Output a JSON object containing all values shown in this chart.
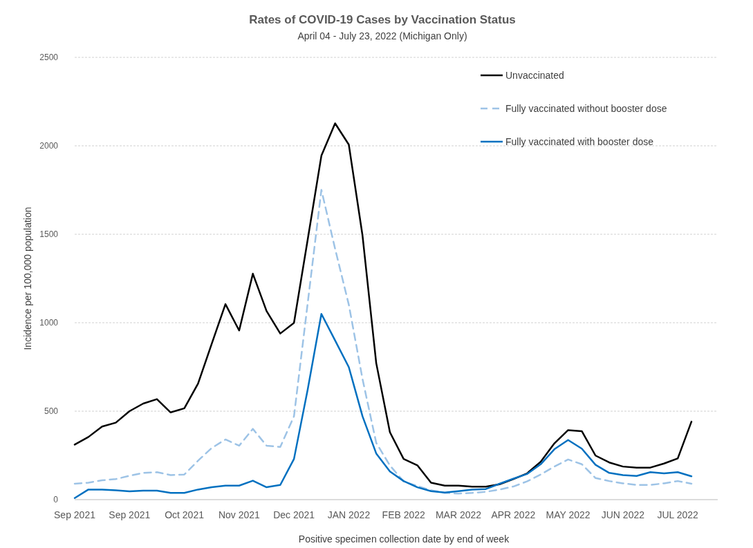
{
  "chart_data": {
    "type": "line",
    "title": "Rates of COVID-19 Cases by Vaccination Status",
    "subtitle": "April 04 - July 23, 2022 (Michigan Only)",
    "xlabel": "Positive specimen collection date by end of week",
    "ylabel": "Incidence per 100,000 population",
    "categories": [
      "Sep 2021",
      null,
      null,
      null,
      "Sep 2021",
      null,
      null,
      null,
      "Oct 2021",
      null,
      null,
      null,
      "Nov 2021",
      null,
      null,
      null,
      "Dec 2021",
      null,
      null,
      null,
      "JAN 2022",
      null,
      null,
      null,
      "FEB 2022",
      null,
      null,
      null,
      "MAR 2022",
      null,
      null,
      null,
      "APR 2022",
      null,
      null,
      null,
      "MAY 2022",
      null,
      null,
      null,
      "JUN 2022",
      null,
      null,
      null,
      "JUL 2022",
      null
    ],
    "series": [
      {
        "name": "Unvaccinated",
        "color": "#000000",
        "line_style": "solid",
        "values": [
          311,
          354,
          413,
          435,
          500,
          543,
          568,
          493,
          516,
          656,
          881,
          1105,
          956,
          1277,
          1066,
          939,
          999,
          1470,
          1944,
          2127,
          2007,
          1493,
          772,
          381,
          230,
          194,
          96,
          79,
          79,
          73,
          73,
          87,
          116,
          148,
          214,
          318,
          393,
          387,
          249,
          210,
          187,
          181,
          181,
          204,
          233,
          441
        ]
      },
      {
        "name": "Fully vaccinated without booster dose",
        "color": "#9dc3e6",
        "line_style": "dashed",
        "values": [
          90,
          96,
          109,
          116,
          135,
          151,
          155,
          139,
          142,
          220,
          292,
          340,
          305,
          400,
          305,
          298,
          471,
          1110,
          1751,
          1418,
          1102,
          682,
          321,
          193,
          103,
          77,
          53,
          38,
          34,
          38,
          44,
          57,
          74,
          103,
          142,
          187,
          227,
          200,
          122,
          105,
          92,
          83,
          83,
          92,
          105,
          90
        ]
      },
      {
        "name": "Fully vaccinated with booster dose",
        "color": "#0070c0",
        "line_style": "solid",
        "values": [
          9,
          57,
          57,
          53,
          47,
          51,
          51,
          38,
          38,
          57,
          70,
          79,
          79,
          107,
          70,
          83,
          230,
          622,
          1050,
          900,
          749,
          471,
          261,
          159,
          105,
          70,
          48,
          40,
          48,
          57,
          60,
          90,
          118,
          145,
          200,
          285,
          337,
          288,
          197,
          151,
          139,
          134,
          155,
          148,
          155,
          132
        ]
      }
    ],
    "ylim": [
      0,
      2500
    ],
    "yticks": [
      0,
      500,
      1000,
      1500,
      2000,
      2500
    ],
    "grid": "y",
    "legend": "top right",
    "marker": "none"
  }
}
